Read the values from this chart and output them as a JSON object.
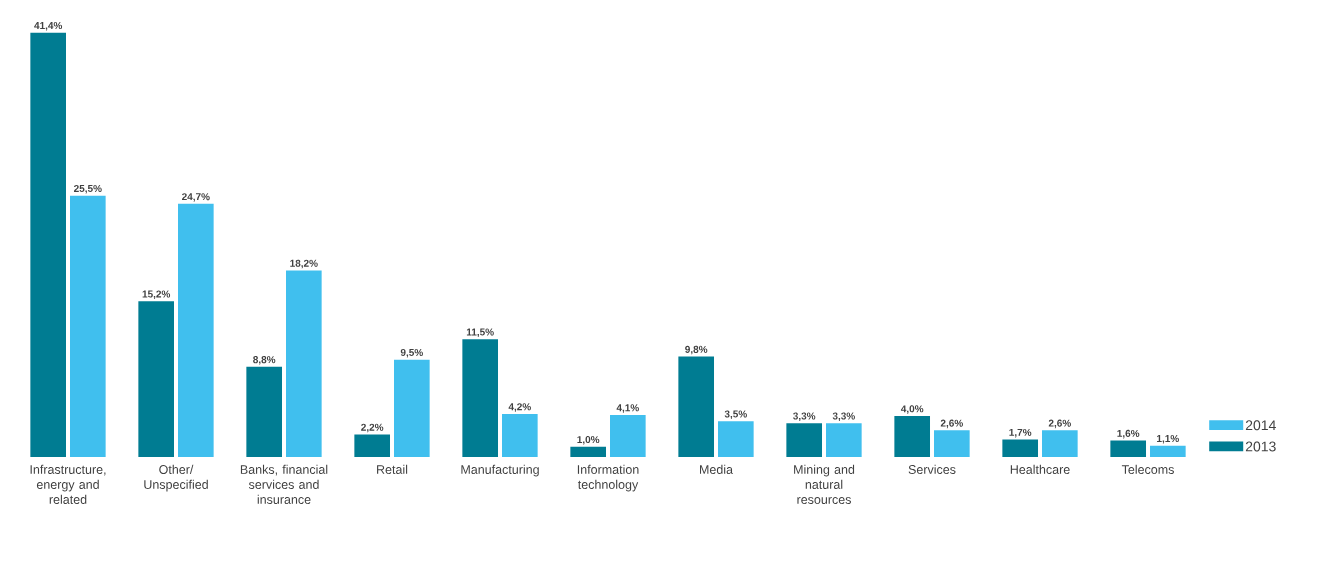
{
  "chart_data": {
    "type": "bar",
    "categories": [
      "Infrastructure, energy and related",
      "Other/ Unspecified",
      "Banks, financial services and insurance",
      "Retail",
      "Manufacturing",
      "Information technology",
      "Media",
      "Mining and natural resources",
      "Services",
      "Healthcare",
      "Telecoms"
    ],
    "series": [
      {
        "name": "2013",
        "color": "#007c92",
        "values": [
          41.4,
          15.2,
          8.8,
          2.2,
          11.5,
          1.0,
          9.8,
          3.3,
          4.0,
          1.7,
          1.6
        ],
        "value_labels": [
          "41,4%",
          "15,2%",
          "8,8%",
          "2,2%",
          "11,5%",
          "1,0%",
          "9,8%",
          "3,3%",
          "4,0%",
          "1,7%",
          "1,6%"
        ]
      },
      {
        "name": "2014",
        "color": "#40bfee",
        "values": [
          25.5,
          24.7,
          18.2,
          9.5,
          4.2,
          4.1,
          3.5,
          3.3,
          2.6,
          2.6,
          1.1
        ],
        "value_labels": [
          "25,5%",
          "24,7%",
          "18,2%",
          "9,5%",
          "4,2%",
          "4,1%",
          "3,5%",
          "3,3%",
          "2,6%",
          "2,6%",
          "1,1%"
        ]
      }
    ],
    "legend": "bottom right"
  }
}
